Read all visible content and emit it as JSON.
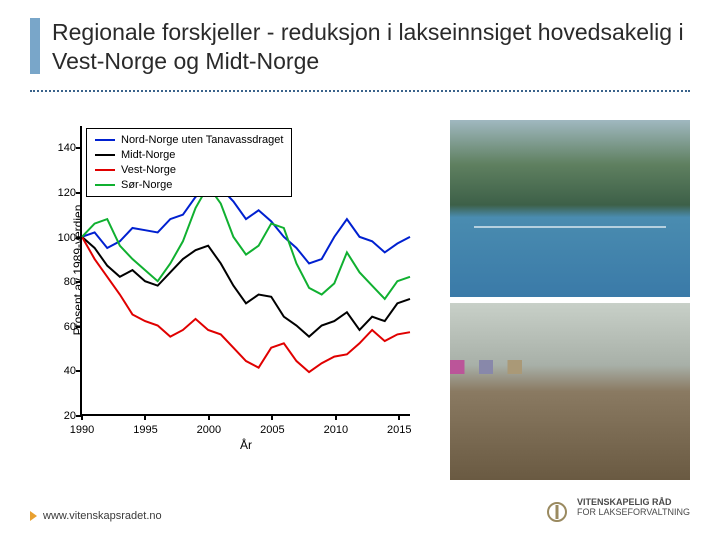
{
  "title": "Regionale forskjeller - reduksjon i lakseinnsiget hovedsakelig i Vest-Norge og Midt-Norge",
  "footer_url": "www.vitenskapsradet.no",
  "logo": {
    "line1": "VITENSKAPELIG RÅD",
    "line2": "FOR LAKSEFORVALTNING"
  },
  "chart": {
    "type": "line",
    "xlabel": "År",
    "ylabel": "Prosent av 1989-verdien",
    "xlim": [
      1990,
      2016
    ],
    "ylim": [
      20,
      150
    ],
    "yticks": [
      20,
      40,
      60,
      80,
      100,
      120,
      140
    ],
    "xticks": [
      1990,
      1995,
      2000,
      2005,
      2010,
      2015
    ],
    "axis_color": "#000000",
    "line_width": 2,
    "background_color": "#ffffff",
    "legend": {
      "border_color": "#000000",
      "position": "top-left"
    },
    "series": [
      {
        "name": "Nord-Norge uten Tanavassdraget",
        "color": "#0020d0",
        "xy": [
          [
            1990,
            100
          ],
          [
            1991,
            102
          ],
          [
            1992,
            95
          ],
          [
            1993,
            98
          ],
          [
            1994,
            104
          ],
          [
            1995,
            103
          ],
          [
            1996,
            102
          ],
          [
            1997,
            108
          ],
          [
            1998,
            110
          ],
          [
            1999,
            118
          ],
          [
            2000,
            123
          ],
          [
            2001,
            122
          ],
          [
            2002,
            116
          ],
          [
            2003,
            108
          ],
          [
            2004,
            112
          ],
          [
            2005,
            107
          ],
          [
            2006,
            100
          ],
          [
            2007,
            95
          ],
          [
            2008,
            88
          ],
          [
            2009,
            90
          ],
          [
            2010,
            100
          ],
          [
            2011,
            108
          ],
          [
            2012,
            100
          ],
          [
            2013,
            98
          ],
          [
            2014,
            93
          ],
          [
            2015,
            97
          ],
          [
            2016,
            100
          ]
        ]
      },
      {
        "name": "Midt-Norge",
        "color": "#000000",
        "xy": [
          [
            1990,
            100
          ],
          [
            1991,
            95
          ],
          [
            1992,
            87
          ],
          [
            1993,
            82
          ],
          [
            1994,
            85
          ],
          [
            1995,
            80
          ],
          [
            1996,
            78
          ],
          [
            1997,
            84
          ],
          [
            1998,
            90
          ],
          [
            1999,
            94
          ],
          [
            2000,
            96
          ],
          [
            2001,
            88
          ],
          [
            2002,
            78
          ],
          [
            2003,
            70
          ],
          [
            2004,
            74
          ],
          [
            2005,
            73
          ],
          [
            2006,
            64
          ],
          [
            2007,
            60
          ],
          [
            2008,
            55
          ],
          [
            2009,
            60
          ],
          [
            2010,
            62
          ],
          [
            2011,
            66
          ],
          [
            2012,
            58
          ],
          [
            2013,
            64
          ],
          [
            2014,
            62
          ],
          [
            2015,
            70
          ],
          [
            2016,
            72
          ]
        ]
      },
      {
        "name": "Vest-Norge",
        "color": "#e00000",
        "xy": [
          [
            1990,
            100
          ],
          [
            1991,
            90
          ],
          [
            1992,
            82
          ],
          [
            1993,
            74
          ],
          [
            1994,
            65
          ],
          [
            1995,
            62
          ],
          [
            1996,
            60
          ],
          [
            1997,
            55
          ],
          [
            1998,
            58
          ],
          [
            1999,
            63
          ],
          [
            2000,
            58
          ],
          [
            2001,
            56
          ],
          [
            2002,
            50
          ],
          [
            2003,
            44
          ],
          [
            2004,
            41
          ],
          [
            2005,
            50
          ],
          [
            2006,
            52
          ],
          [
            2007,
            44
          ],
          [
            2008,
            39
          ],
          [
            2009,
            43
          ],
          [
            2010,
            46
          ],
          [
            2011,
            47
          ],
          [
            2012,
            52
          ],
          [
            2013,
            58
          ],
          [
            2014,
            53
          ],
          [
            2015,
            56
          ],
          [
            2016,
            57
          ]
        ]
      },
      {
        "name": "Sør-Norge",
        "color": "#10b030",
        "xy": [
          [
            1990,
            100
          ],
          [
            1991,
            106
          ],
          [
            1992,
            108
          ],
          [
            1993,
            96
          ],
          [
            1994,
            90
          ],
          [
            1995,
            85
          ],
          [
            1996,
            80
          ],
          [
            1997,
            88
          ],
          [
            1998,
            98
          ],
          [
            1999,
            113
          ],
          [
            2000,
            123
          ],
          [
            2001,
            115
          ],
          [
            2002,
            100
          ],
          [
            2003,
            92
          ],
          [
            2004,
            96
          ],
          [
            2005,
            106
          ],
          [
            2006,
            104
          ],
          [
            2007,
            88
          ],
          [
            2008,
            77
          ],
          [
            2009,
            74
          ],
          [
            2010,
            79
          ],
          [
            2011,
            93
          ],
          [
            2012,
            84
          ],
          [
            2013,
            78
          ],
          [
            2014,
            72
          ],
          [
            2015,
            80
          ],
          [
            2016,
            82
          ]
        ]
      }
    ]
  }
}
